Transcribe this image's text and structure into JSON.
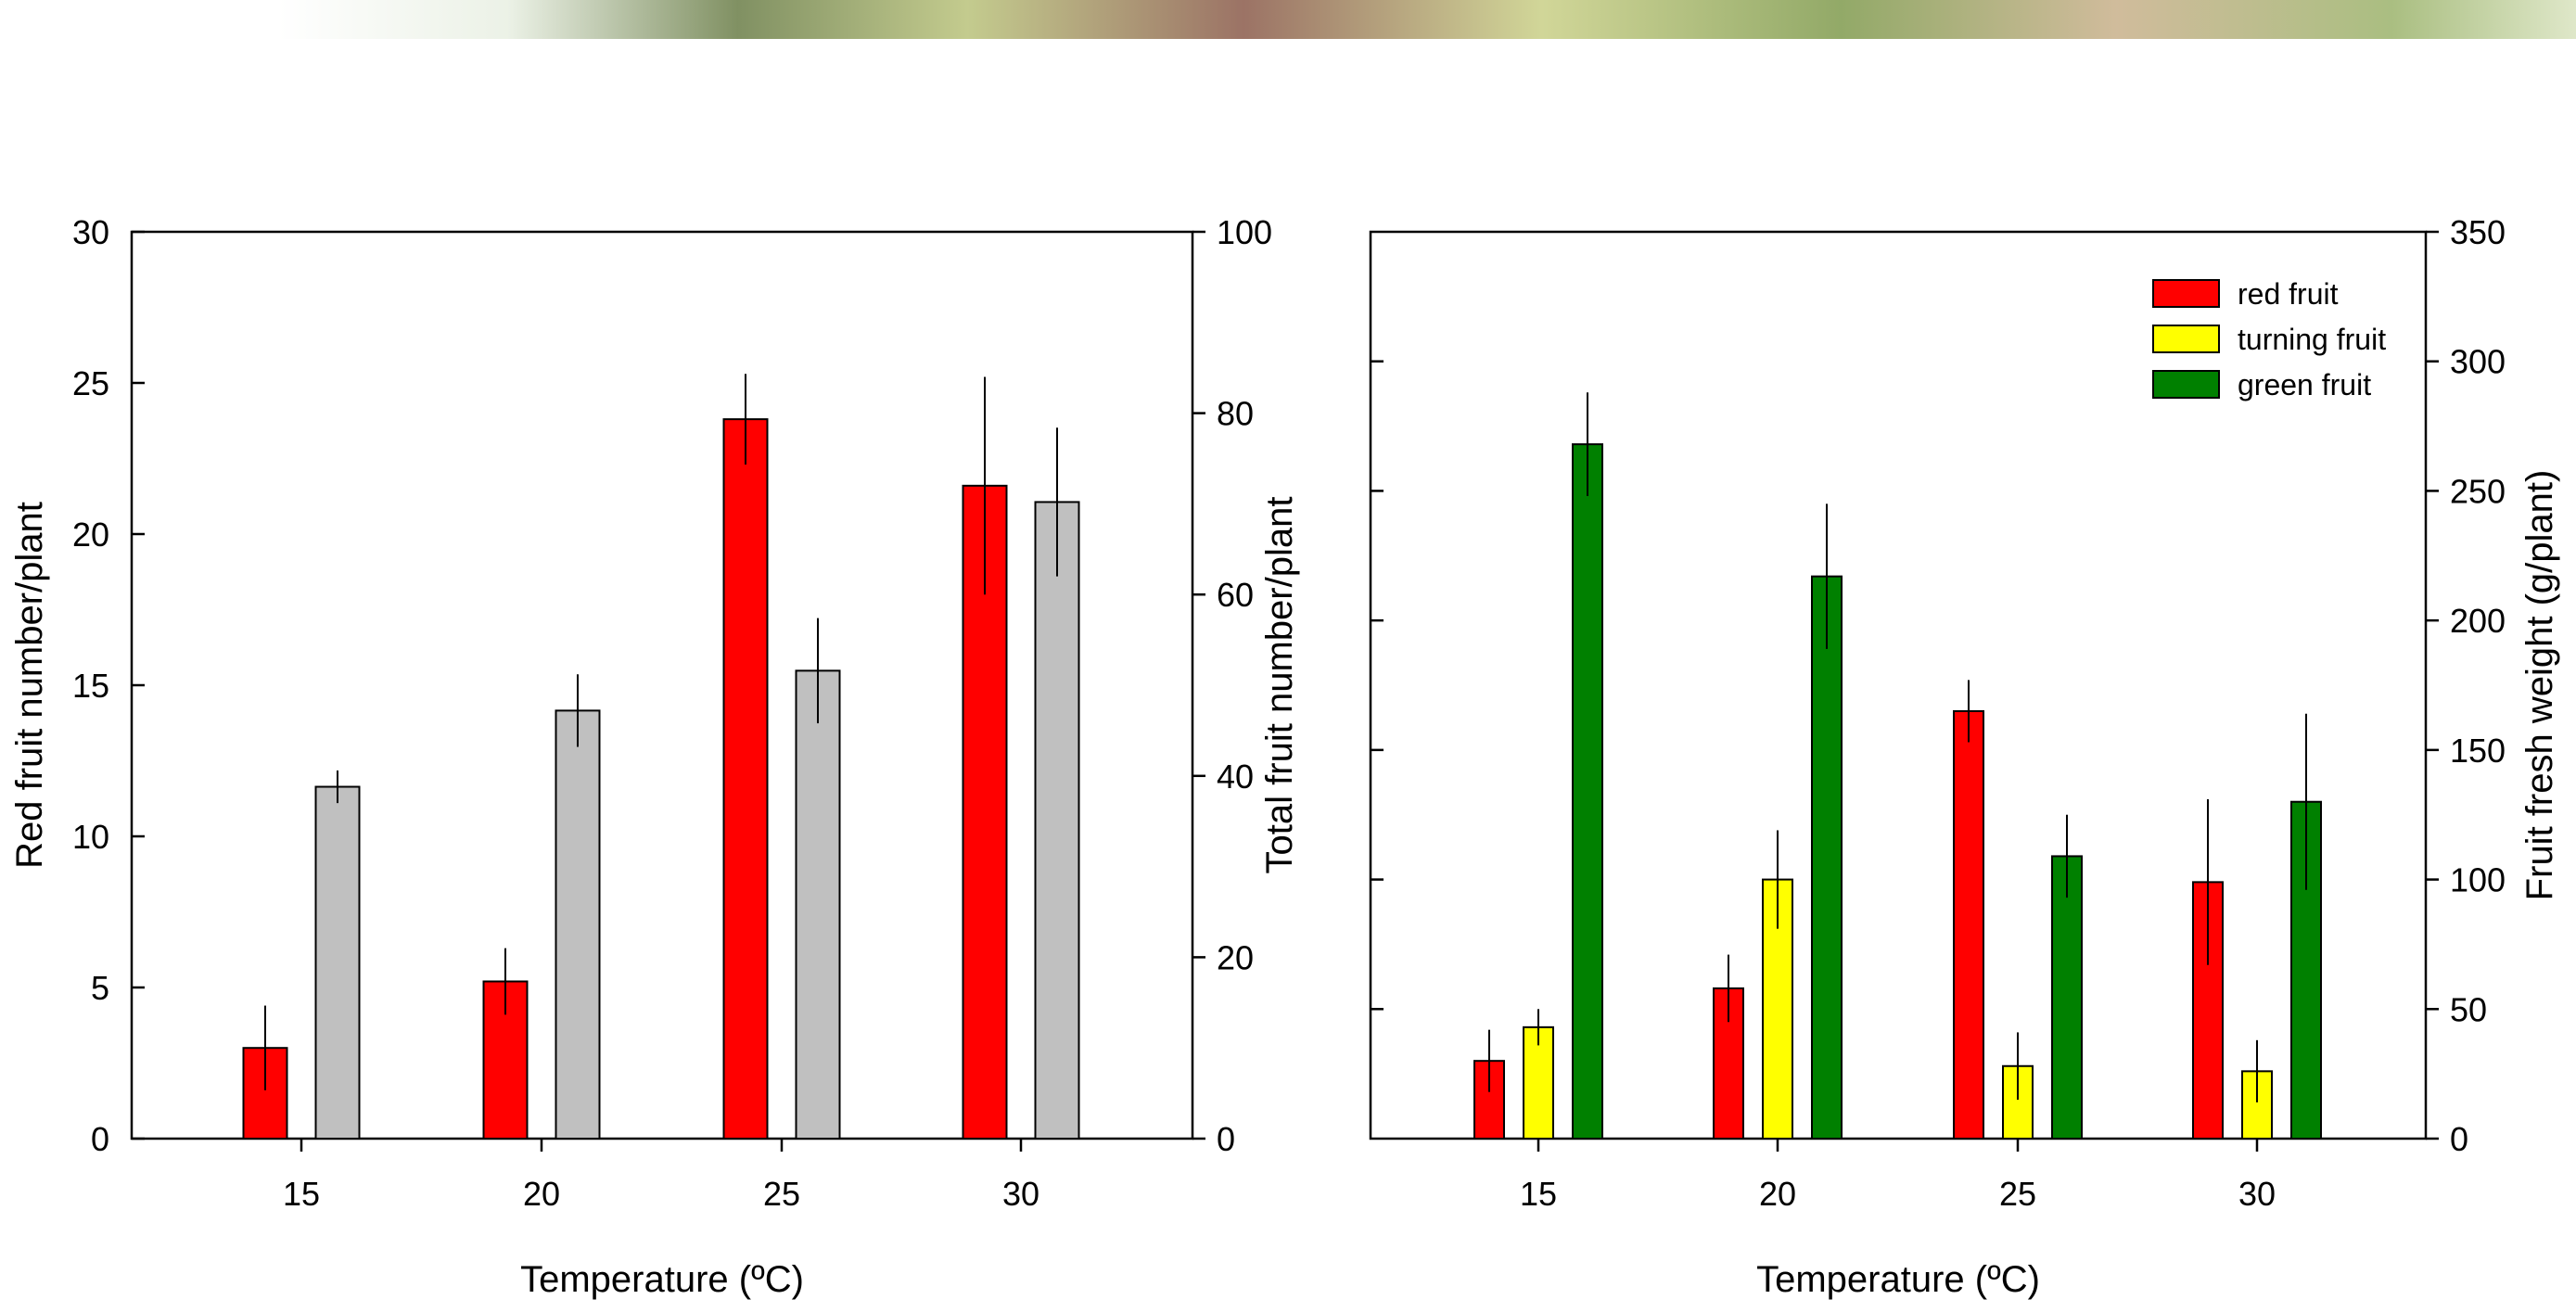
{
  "left_panel": {
    "xlabel": "Temperature (ºC)",
    "ylabel_left": "Red fruit number/plant",
    "ylabel_right": "Total fruit number/plant"
  },
  "right_panel": {
    "xlabel": "Temperature (ºC)",
    "ylabel_right": "Fruit fresh weight (g/plant)",
    "legend": [
      "red fruit",
      "turning fruit",
      "green fruit"
    ]
  },
  "colors": {
    "red": "#ff0000",
    "grey": "#c0c0c0",
    "yellow": "#ffff00",
    "green": "#008000"
  },
  "chart_data": [
    {
      "type": "bar",
      "categories": [
        "15",
        "20",
        "25",
        "30"
      ],
      "xlabel": "Temperature (ºC)",
      "ylabel": "Red fruit number/plant",
      "y2label": "Total fruit number/plant",
      "ylim": [
        0,
        30
      ],
      "y2lim": [
        0,
        100
      ],
      "yticks": [
        0,
        5,
        10,
        15,
        20,
        25,
        30
      ],
      "y2ticks": [
        0,
        20,
        40,
        60,
        80,
        100
      ],
      "series": [
        {
          "axis": "left",
          "color": "#ff0000",
          "values": [
            3.0,
            5.2,
            23.8,
            21.6
          ],
          "errors": [
            1.4,
            1.1,
            1.5,
            3.6
          ]
        },
        {
          "axis": "right",
          "color": "#c0c0c0",
          "values": [
            38.8,
            47.2,
            51.6,
            70.2
          ],
          "errors": [
            1.8,
            4.0,
            5.8,
            8.2
          ]
        }
      ]
    },
    {
      "type": "bar",
      "categories": [
        "15",
        "20",
        "25",
        "30"
      ],
      "xlabel": "Temperature (ºC)",
      "ylabel": "Fruit fresh weight (g/plant)",
      "ylim": [
        0,
        350
      ],
      "yticks": [
        0,
        50,
        100,
        150,
        200,
        250,
        300,
        350
      ],
      "legend_position": "top-right",
      "series": [
        {
          "name": "red fruit",
          "color": "#ff0000",
          "values": [
            30,
            58,
            165,
            99
          ],
          "errors": [
            12,
            13,
            12,
            32
          ]
        },
        {
          "name": "turning fruit",
          "color": "#ffff00",
          "values": [
            43,
            100,
            28,
            26
          ],
          "errors": [
            7,
            19,
            13,
            12
          ]
        },
        {
          "name": "green fruit",
          "color": "#008000",
          "values": [
            268,
            217,
            109,
            130
          ],
          "errors": [
            20,
            28,
            16,
            34
          ]
        }
      ]
    }
  ]
}
